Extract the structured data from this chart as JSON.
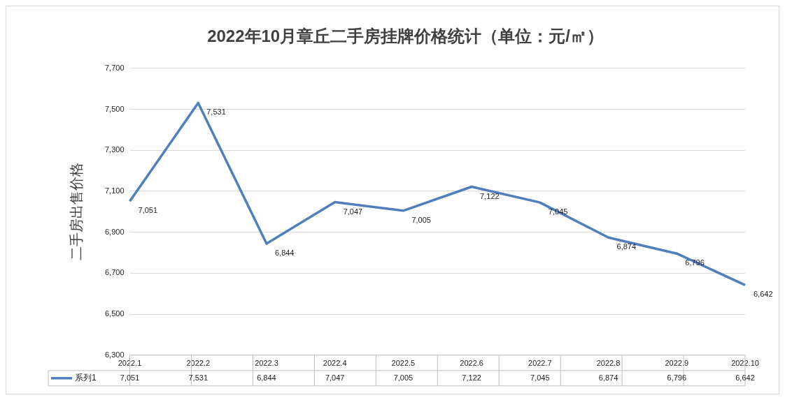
{
  "chart_data": {
    "type": "line",
    "title": "2022年10月章丘二手房挂牌价格统计（单位：元/㎡）",
    "ylabel": "二手房出售价格",
    "categories": [
      "2022.1",
      "2022.2",
      "2022.3",
      "2022.4",
      "2022.5",
      "2022.6",
      "2022.7",
      "2022.8",
      "2022.9",
      "2022.10"
    ],
    "series": [
      {
        "name": "系列1",
        "color": "#4f7fbc",
        "values": [
          7051,
          7531,
          6844,
          7047,
          7005,
          7122,
          7045,
          6874,
          6796,
          6642
        ],
        "value_labels": [
          "7,051",
          "7,531",
          "6,844",
          "7,047",
          "7,005",
          "7,122",
          "7,045",
          "6,874",
          "6,796",
          "6,642"
        ]
      }
    ],
    "ylim": [
      6300,
      7700
    ],
    "yticks": [
      {
        "value": 6300,
        "label": "6,300"
      },
      {
        "value": 6500,
        "label": "6,500"
      },
      {
        "value": 6700,
        "label": "6,700"
      },
      {
        "value": 6900,
        "label": "6,900"
      },
      {
        "value": 7100,
        "label": "7,100"
      },
      {
        "value": 7300,
        "label": "7,300"
      },
      {
        "value": 7500,
        "label": "7,500"
      },
      {
        "value": 7700,
        "label": "7,700"
      }
    ],
    "grid": "y",
    "legend": "bottom",
    "marker": "none",
    "line_style": "solid"
  }
}
